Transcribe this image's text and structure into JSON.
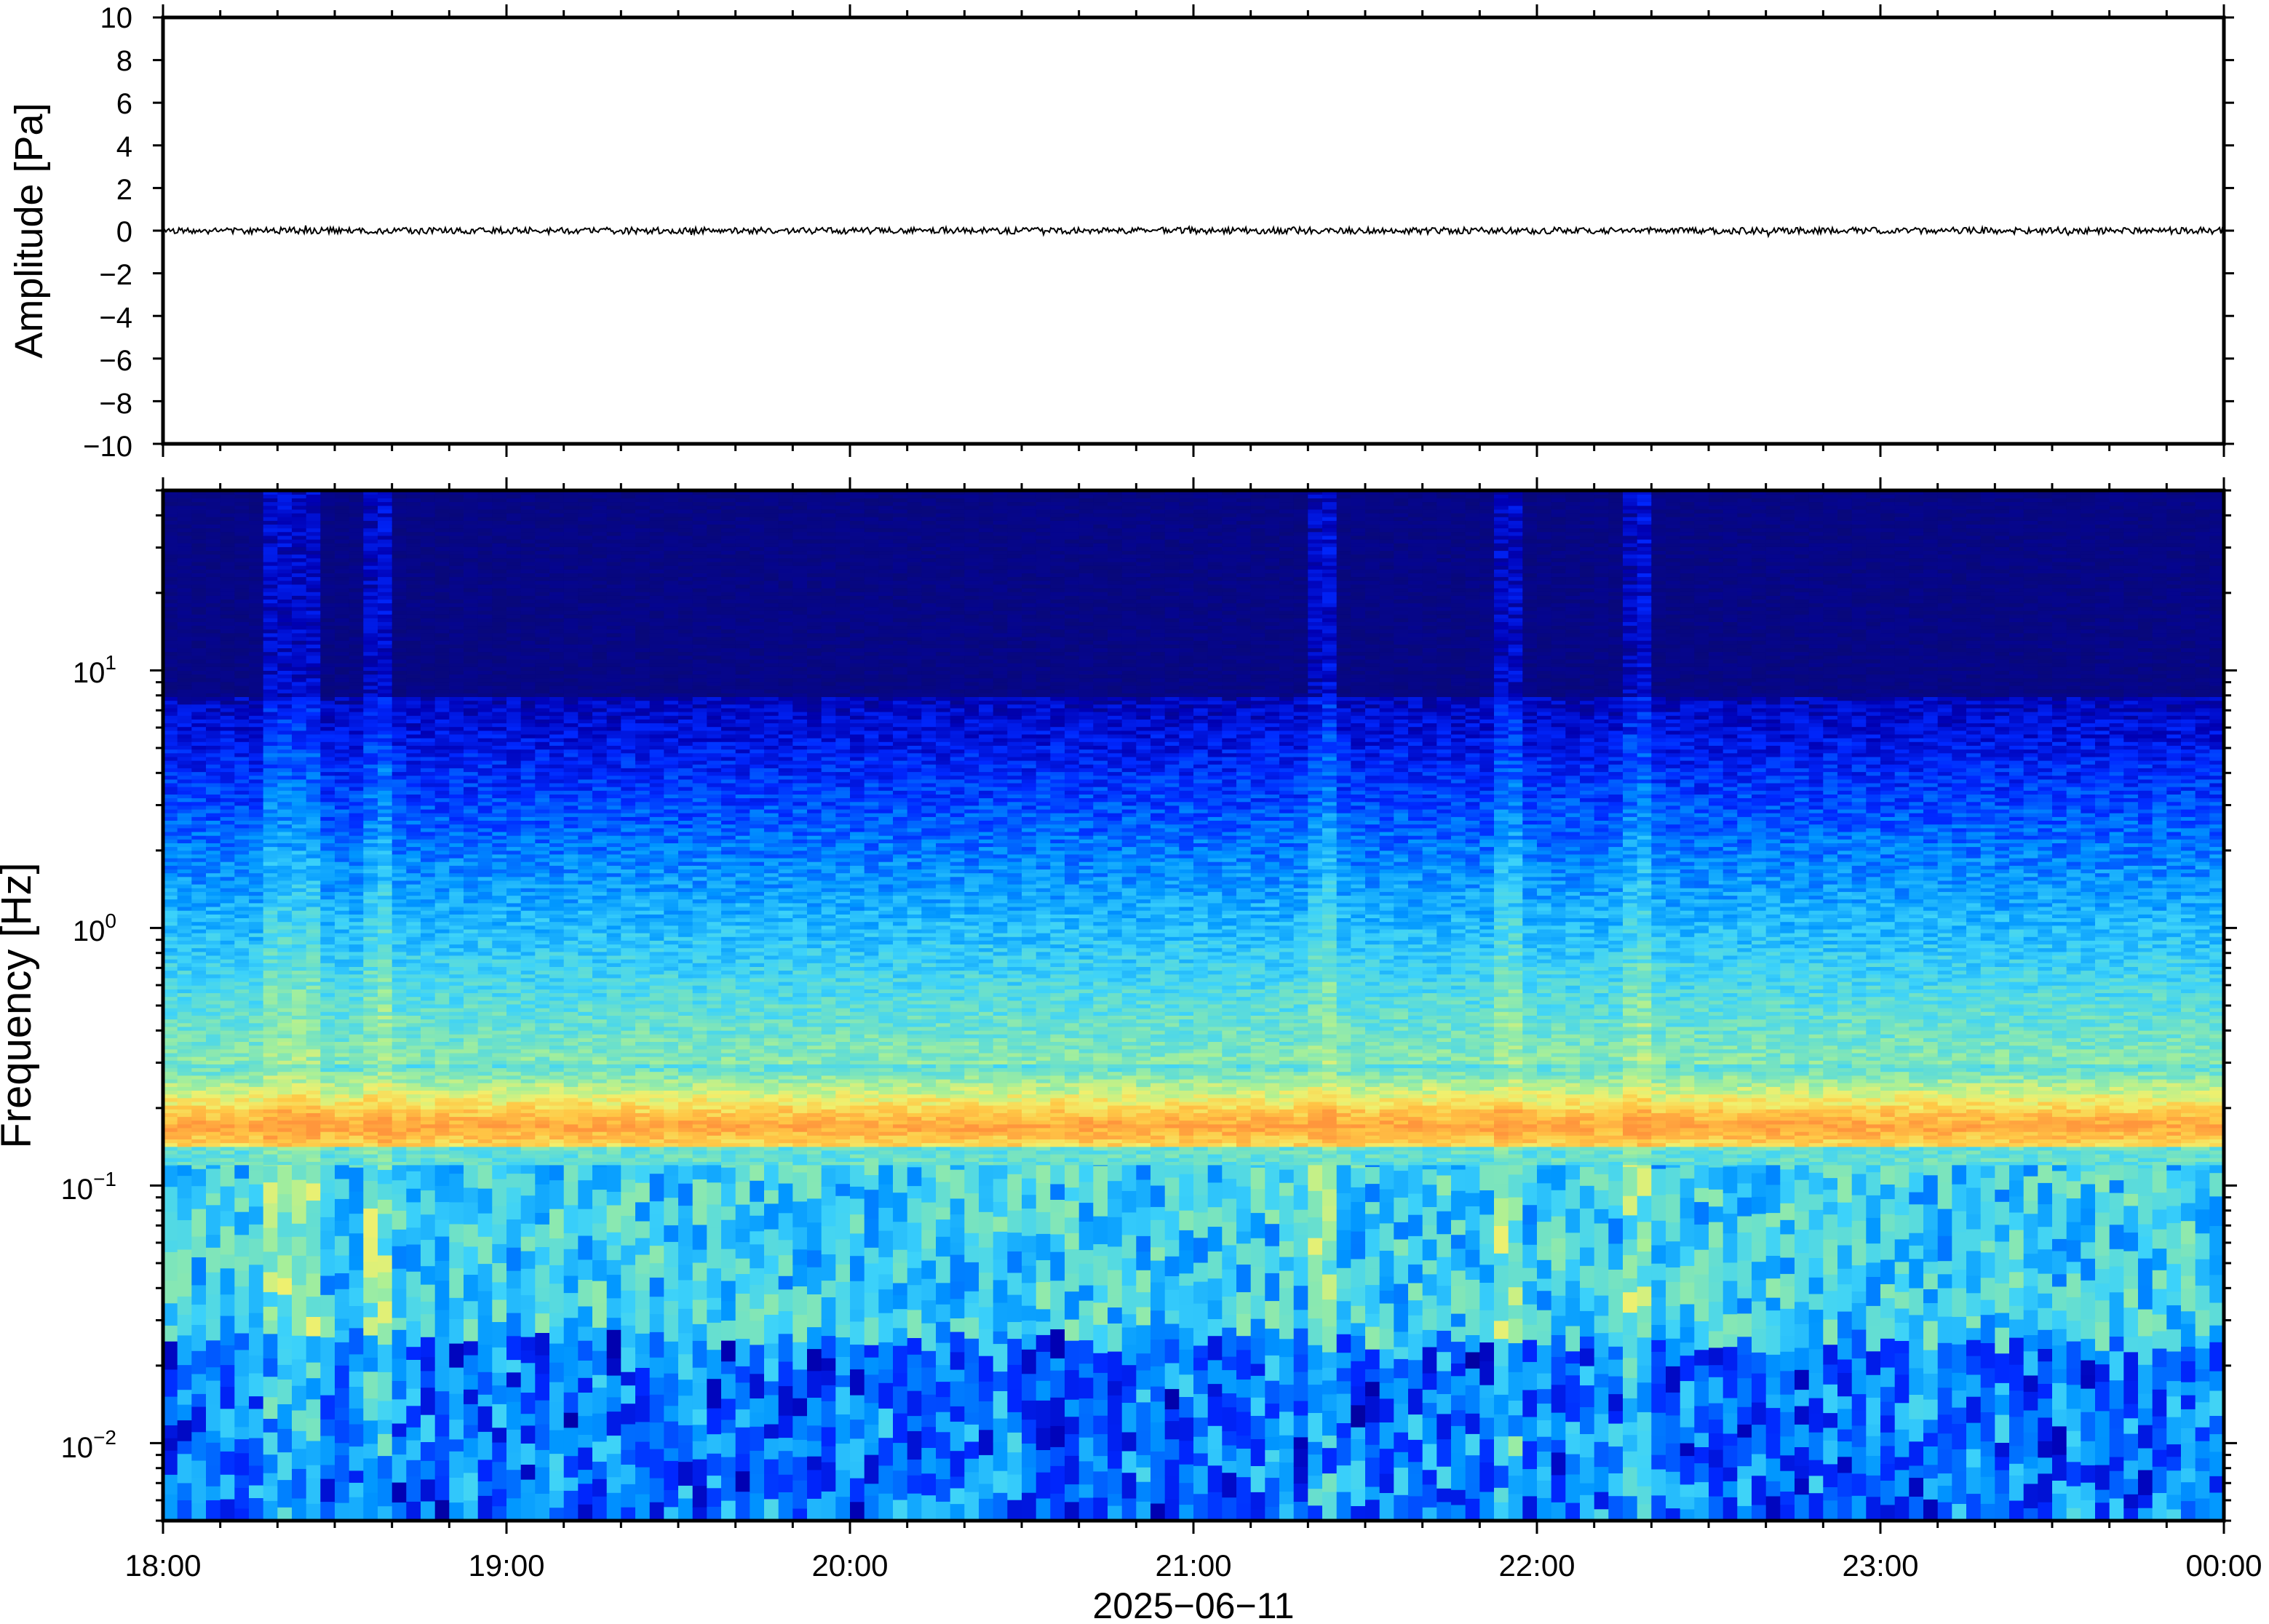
{
  "chart_data": [
    {
      "type": "line",
      "panel": "waveform",
      "ylabel": "Amplitude [Pa]",
      "ylim": [
        -10,
        10
      ],
      "yticks": [
        10,
        8,
        6,
        4,
        2,
        0,
        -2,
        -4,
        -6,
        -8,
        -10
      ],
      "ytick_labels": [
        "10",
        "8",
        "6",
        "4",
        "2",
        "0",
        "−2",
        "−4",
        "−6",
        "−8",
        "−10"
      ],
      "series": [
        {
          "x_range": [
            "2025-06-11 18:00",
            "2025-06-12 00:00"
          ],
          "approx_amplitude_pa": 0.15,
          "color": "#000000"
        }
      ],
      "grid": false
    },
    {
      "type": "heatmap",
      "panel": "spectrogram",
      "ylabel": "Frequency [Hz]",
      "yscale": "log",
      "ylim_hz": [
        0.005,
        50
      ],
      "yticks_hz": [
        0.01,
        0.1,
        1,
        10
      ],
      "ytick_labels": [
        {
          "base": "10",
          "exp": "−2"
        },
        {
          "base": "10",
          "exp": "−1"
        },
        {
          "base": "10",
          "exp": "0"
        },
        {
          "base": "10",
          "exp": "1"
        }
      ],
      "colormap": "jet",
      "features": {
        "microbarom_peak_hz": 0.17,
        "high_frequency_floor_above_hz": 8,
        "energetic_columns_at": [
          "18:20",
          "18:25",
          "18:38",
          "21:23",
          "21:55",
          "22:18"
        ]
      },
      "grid": false
    }
  ],
  "x_axis": {
    "ticks": [
      "18:00",
      "19:00",
      "20:00",
      "21:00",
      "22:00",
      "23:00",
      "00:00"
    ],
    "label": "2025−06−11"
  },
  "colors": {
    "jet_dark_blue": "#0a0a6b",
    "peak_orange": "#ff9a3c",
    "trace": "#000000",
    "frame": "#000000"
  }
}
